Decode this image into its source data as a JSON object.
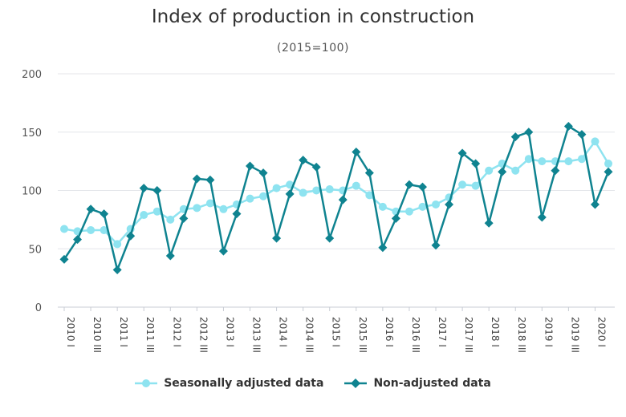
{
  "chart_data": {
    "type": "line",
    "title": "Index of production in construction",
    "subtitle": "(2015=100)",
    "xlabel": "",
    "ylabel": "",
    "ylim": [
      0,
      200
    ],
    "yticks": [
      0,
      50,
      100,
      150,
      200
    ],
    "grid": true,
    "legend_position": "bottom",
    "categories": [
      "2010 I",
      "2010 II",
      "2010 III",
      "2010 IV",
      "2011 I",
      "2011 II",
      "2011 III",
      "2011 IV",
      "2012 I",
      "2012 II",
      "2012 III",
      "2012 IV",
      "2013 I",
      "2013 II",
      "2013 III",
      "2013 IV",
      "2014 I",
      "2014 II",
      "2014 III",
      "2014 IV",
      "2015 I",
      "2015 II",
      "2015 III",
      "2015 IV",
      "2016 I",
      "2016 II",
      "2016 III",
      "2016 IV",
      "2017 I",
      "2017 II",
      "2017 III",
      "2017 IV",
      "2018 I",
      "2018 II",
      "2018 III",
      "2018 IV",
      "2019 I",
      "2019 II",
      "2019 III",
      "2019 IV",
      "2020 I",
      "2020 II"
    ],
    "tick_labels": [
      "2010 I",
      "2010 III",
      "2011 I",
      "2011 III",
      "2012 I",
      "2012 III",
      "2013 I",
      "2013 III",
      "2014 I",
      "2014 III",
      "2015 I",
      "2015 III",
      "2016 I",
      "2016 III",
      "2017 I",
      "2017 III",
      "2018 I",
      "2018 III",
      "2019 I",
      "2019 III",
      "2020 I"
    ],
    "series": [
      {
        "name": "Seasonally adjusted data",
        "color": "#8ee3f0",
        "marker": "circle",
        "values": [
          67,
          65,
          66,
          66,
          54,
          67,
          79,
          82,
          75,
          84,
          85,
          89,
          84,
          88,
          93,
          95,
          102,
          105,
          98,
          100,
          101,
          100,
          104,
          96,
          86,
          82,
          82,
          86,
          88,
          94,
          105,
          104,
          117,
          123,
          117,
          127,
          125,
          125,
          125,
          127,
          142,
          123
        ]
      },
      {
        "name": "Non-adjusted data",
        "color": "#0f8390",
        "marker": "diamond",
        "values": [
          41,
          58,
          84,
          80,
          32,
          61,
          102,
          100,
          44,
          76,
          110,
          109,
          48,
          80,
          121,
          115,
          59,
          97,
          126,
          120,
          59,
          92,
          133,
          115,
          51,
          76,
          105,
          103,
          53,
          88,
          132,
          123,
          72,
          116,
          146,
          150,
          77,
          117,
          155,
          148,
          88,
          116
        ]
      }
    ]
  }
}
